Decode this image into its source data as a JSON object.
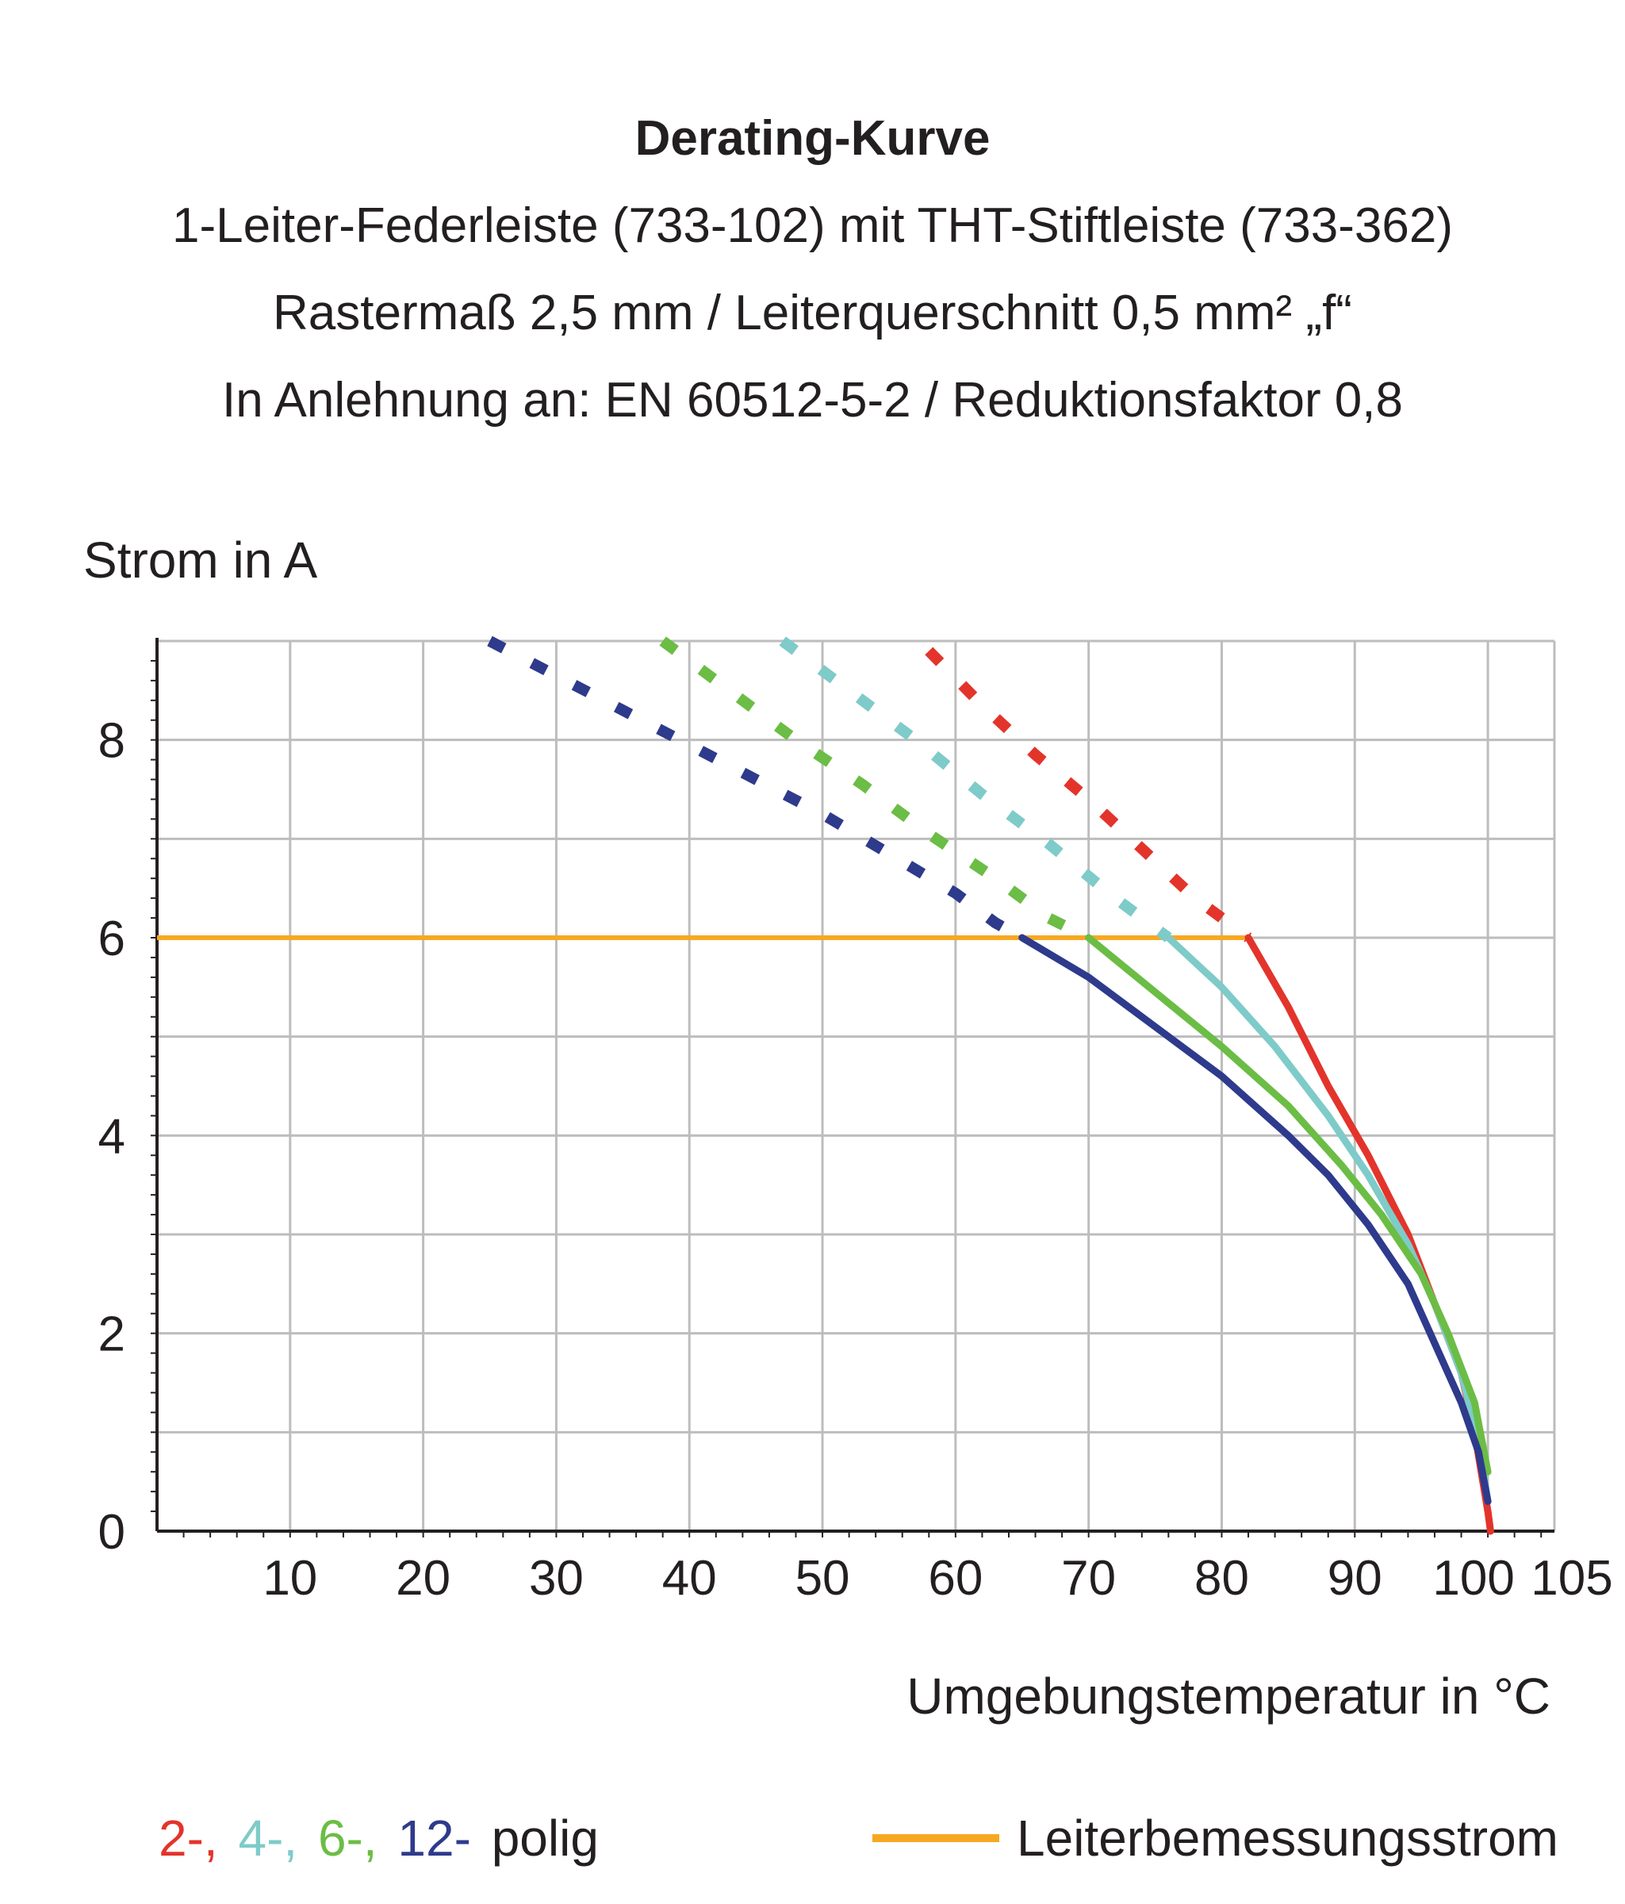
{
  "chart_data": {
    "type": "line",
    "title": "Derating-Kurve",
    "subtitles": [
      "1-Leiter-Federleiste (733-102) mit THT-Stiftleiste (733-362)",
      "Rastermaß 2,5 mm / Leiterquerschnitt 0,5 mm² „f“",
      "In Anlehnung an: EN 60512-5-2 / Reduktionsfaktor 0,8"
    ],
    "ylabel": "Strom in A",
    "xlabel": "Umgebungstemperatur in °C",
    "xlim": [
      0,
      105
    ],
    "ylim": [
      0,
      9
    ],
    "xticks": [
      10,
      20,
      30,
      40,
      50,
      60,
      70,
      80,
      90,
      100,
      105
    ],
    "yticks": [
      0,
      2,
      4,
      6,
      8
    ],
    "grid": true,
    "series": [
      {
        "name": "2-",
        "color": "#e3342b",
        "dashed": {
          "x": [
            58,
            62,
            66,
            70,
            74,
            78,
            82
          ],
          "y": [
            8.9,
            8.35,
            7.85,
            7.4,
            6.9,
            6.4,
            6.0
          ]
        },
        "solid": {
          "x": [
            82,
            85,
            88,
            91,
            94,
            96,
            98,
            99,
            99.5,
            100,
            100.2
          ],
          "y": [
            6.0,
            5.3,
            4.5,
            3.8,
            3.0,
            2.3,
            1.6,
            1.0,
            0.6,
            0.2,
            0.0
          ]
        }
      },
      {
        "name": "4-",
        "color": "#7ecbc9",
        "dashed": {
          "x": [
            47,
            52,
            57,
            62,
            67,
            72,
            76
          ],
          "y": [
            9.0,
            8.5,
            8.0,
            7.45,
            6.95,
            6.4,
            6.0
          ]
        },
        "solid": {
          "x": [
            76,
            80,
            84,
            88,
            91,
            94,
            96,
            98,
            99.3,
            100
          ],
          "y": [
            6.0,
            5.5,
            4.9,
            4.2,
            3.6,
            2.9,
            2.3,
            1.6,
            0.9,
            0.3
          ]
        }
      },
      {
        "name": "6-",
        "color": "#6bbd45",
        "dashed": {
          "x": [
            38,
            43,
            48,
            53,
            58,
            63,
            67,
            70
          ],
          "y": [
            9.0,
            8.5,
            8.0,
            7.55,
            7.05,
            6.6,
            6.2,
            6.0
          ]
        },
        "solid": {
          "x": [
            70,
            75,
            80,
            85,
            89,
            92,
            95,
            97,
            99,
            100
          ],
          "y": [
            6.0,
            5.45,
            4.9,
            4.3,
            3.7,
            3.2,
            2.6,
            2.0,
            1.3,
            0.6
          ]
        }
      },
      {
        "name": "12-",
        "color": "#2e3a8c",
        "dashed": {
          "x": [
            25,
            30,
            35,
            40,
            45,
            50,
            55,
            60,
            63,
            65
          ],
          "y": [
            9.0,
            8.65,
            8.3,
            7.95,
            7.6,
            7.25,
            6.85,
            6.45,
            6.15,
            6.0
          ]
        },
        "solid": {
          "x": [
            65,
            70,
            75,
            80,
            85,
            88,
            91,
            94,
            96,
            98,
            99.3,
            100
          ],
          "y": [
            6.0,
            5.6,
            5.1,
            4.6,
            4.0,
            3.6,
            3.1,
            2.5,
            1.9,
            1.3,
            0.8,
            0.3
          ]
        }
      }
    ],
    "reference_line": {
      "name": "Leiterbemessungsstrom",
      "color": "#f7a823",
      "value": 6.0,
      "x_range": [
        0,
        82
      ]
    },
    "legend": {
      "poles": [
        {
          "label": "2-,",
          "color": "#e3342b"
        },
        {
          "label": "4-,",
          "color": "#7ecbc9"
        },
        {
          "label": "6-,",
          "color": "#6bbd45"
        },
        {
          "label": "12-",
          "color": "#2e3a8c"
        }
      ],
      "poles_suffix": "polig",
      "reference_label": "Leiterbemessungsstrom",
      "reference_color": "#f7a823"
    }
  }
}
